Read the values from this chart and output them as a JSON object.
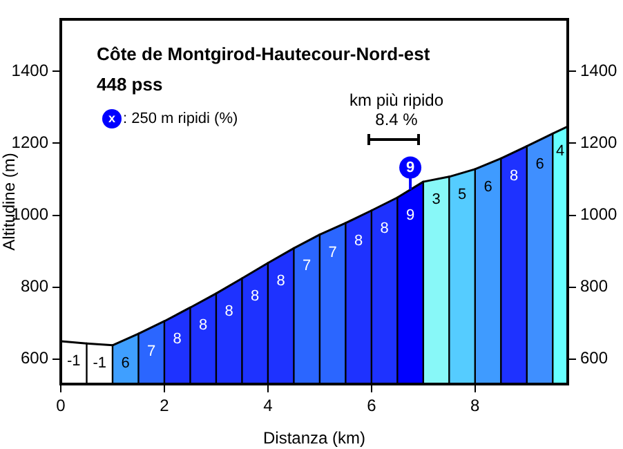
{
  "chart_data": {
    "type": "area",
    "title": "Côte de Montgirod-Hautecour-Nord-est",
    "subtitle": "448 pss",
    "xlabel": "Distanza (km)",
    "ylabel": "Altitudine (m)",
    "series": [
      {
        "color": "#ffffff",
        "x": [
          0,
          0.5
        ],
        "values": [
          649,
          643
        ]
      },
      {
        "color": "#ffffff",
        "x": [
          0.5,
          1
        ],
        "values": [
          643,
          638
        ]
      },
      {
        "color": "#3f9fff",
        "x": [
          1,
          1.5
        ],
        "values": [
          638,
          670
        ]
      },
      {
        "color": "#2b66ff",
        "x": [
          1.5,
          2
        ],
        "values": [
          670,
          705
        ]
      },
      {
        "color": "#1e32ff",
        "x": [
          2,
          2.5
        ],
        "values": [
          705,
          743
        ]
      },
      {
        "color": "#1e32ff",
        "x": [
          2.5,
          3
        ],
        "values": [
          743,
          782
        ]
      },
      {
        "color": "#1e32ff",
        "x": [
          3,
          3.5
        ],
        "values": [
          782,
          824
        ]
      },
      {
        "color": "#1e32ff",
        "x": [
          3.5,
          4
        ],
        "values": [
          824,
          867
        ]
      },
      {
        "color": "#1e32ff",
        "x": [
          4,
          4.5
        ],
        "values": [
          867,
          908
        ]
      },
      {
        "color": "#2b66ff",
        "x": [
          4.5,
          5
        ],
        "values": [
          908,
          946
        ]
      },
      {
        "color": "#2b66ff",
        "x": [
          5,
          5.5
        ],
        "values": [
          946,
          978
        ]
      },
      {
        "color": "#1e32ff",
        "x": [
          5.5,
          6
        ],
        "values": [
          978,
          1013
        ]
      },
      {
        "color": "#1e32ff",
        "x": [
          6,
          6.5
        ],
        "values": [
          1013,
          1049
        ]
      },
      {
        "color": "#0000ff",
        "x": [
          6.5,
          7
        ],
        "values": [
          1049,
          1093
        ]
      },
      {
        "color": "#88f8f8",
        "x": [
          7,
          7.5
        ],
        "values": [
          1093,
          1107
        ]
      },
      {
        "color": "#55ccff",
        "x": [
          7.5,
          8
        ],
        "values": [
          1107,
          1128
        ]
      },
      {
        "color": "#3f9bff",
        "x": [
          8,
          8.5
        ],
        "values": [
          1128,
          1158
        ]
      },
      {
        "color": "#1e32ff",
        "x": [
          8.5,
          9
        ],
        "values": [
          1158,
          1192
        ]
      },
      {
        "color": "#3f8fff",
        "x": [
          9,
          9.5
        ],
        "values": [
          1192,
          1227
        ]
      },
      {
        "color": "#66ffff",
        "x": [
          9.5,
          9.79
        ],
        "values": [
          1227,
          1247
        ]
      }
    ],
    "annotations": [
      "x",
      ": 250 m ripidi (%)",
      "km più ripido",
      "8.4 %",
      {
        "text": "9",
        "x": 6.75,
        "y": 1071
      },
      {
        "text": "-1",
        "x": 0.25,
        "y": 646
      },
      {
        "text": "-1",
        "x": 0.75,
        "y": 640
      },
      {
        "text": "6",
        "x": 1.25,
        "y": 654
      },
      {
        "text": "7",
        "x": 1.75,
        "y": 688
      },
      {
        "text": "8",
        "x": 2.25,
        "y": 724
      },
      {
        "text": "8",
        "x": 2.75,
        "y": 762
      },
      {
        "text": "8",
        "x": 3.25,
        "y": 803
      },
      {
        "text": "8",
        "x": 3.75,
        "y": 845
      },
      {
        "text": "8",
        "x": 4.25,
        "y": 887
      },
      {
        "text": "7",
        "x": 4.75,
        "y": 927
      },
      {
        "text": "7",
        "x": 5.25,
        "y": 962
      },
      {
        "text": "8",
        "x": 5.75,
        "y": 995
      },
      {
        "text": "8",
        "x": 6.25,
        "y": 1031
      },
      {
        "text": "9",
        "x": 6.75,
        "y": 1071
      },
      {
        "text": "3",
        "x": 7.25,
        "y": 1100
      },
      {
        "text": "5",
        "x": 7.75,
        "y": 1117
      },
      {
        "text": "6",
        "x": 8.25,
        "y": 1143
      },
      {
        "text": "8",
        "x": 8.75,
        "y": 1175
      },
      {
        "text": "6",
        "x": 9.25,
        "y": 1209
      },
      {
        "text": "4",
        "x": 9.645,
        "y": 1237
      }
    ],
    "xlim": [
      0,
      9.79
    ],
    "xticks": [
      0,
      2,
      4,
      6,
      8
    ],
    "ylim": [
      530,
      1545
    ],
    "yticks": [
      600,
      800,
      1000,
      1200,
      1400
    ],
    "y2lim": [
      530,
      1545
    ],
    "y2ticks": [
      600,
      800,
      1000,
      1200,
      1400
    ],
    "grid": false,
    "legend": false
  }
}
